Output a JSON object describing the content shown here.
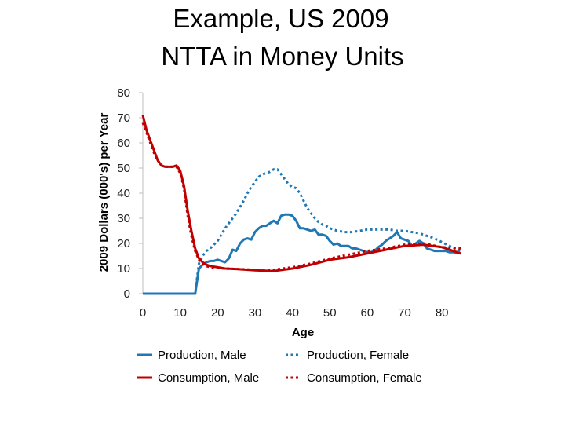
{
  "title_line1": "Example, US 2009",
  "title_line2": "NTTA in Money Units",
  "chart_data": {
    "type": "line",
    "title": "Example, US 2009 NTTA in Money Units",
    "xlabel": "Age",
    "ylabel": "2009 Dollars (000's) per Year",
    "xlim": [
      0,
      85
    ],
    "ylim": [
      0,
      80
    ],
    "xticks": [
      0,
      10,
      20,
      30,
      40,
      50,
      60,
      70,
      80
    ],
    "yticks": [
      0,
      10,
      20,
      30,
      40,
      50,
      60,
      70,
      80
    ],
    "grid": false,
    "legend_position": "bottom",
    "colors": {
      "male_production": "#1f77b4",
      "female_production": "#1f77b4",
      "male_consumption": "#c00000",
      "female_consumption": "#c00000"
    },
    "series": [
      {
        "name": "Production, Male",
        "style": "solid",
        "color": "#1f77b4",
        "x": [
          0,
          5,
          10,
          14,
          15,
          16,
          17,
          18,
          19,
          20,
          21,
          22,
          23,
          24,
          25,
          26,
          27,
          28,
          29,
          30,
          31,
          32,
          33,
          34,
          35,
          36,
          37,
          38,
          39,
          40,
          41,
          42,
          43,
          44,
          45,
          46,
          47,
          48,
          49,
          50,
          51,
          52,
          53,
          54,
          55,
          56,
          57,
          58,
          59,
          60,
          61,
          62,
          63,
          64,
          65,
          66,
          67,
          68,
          69,
          70,
          71,
          72,
          73,
          74,
          75,
          76,
          77,
          78,
          79,
          80,
          81,
          82,
          83,
          84,
          85
        ],
        "y": [
          0,
          0,
          0,
          0,
          10,
          11.5,
          12.5,
          13,
          13,
          13.5,
          13,
          12.5,
          14,
          17.5,
          17,
          20,
          21.5,
          22,
          21.5,
          24.5,
          26,
          27,
          27,
          28,
          29,
          28,
          31,
          31.5,
          31.5,
          31,
          29,
          26,
          26,
          25.5,
          25,
          25.5,
          23.5,
          23.5,
          23,
          21,
          19.5,
          20,
          19,
          19,
          19,
          18,
          18,
          17.5,
          17,
          16.5,
          16.5,
          17,
          18.5,
          19.5,
          21,
          22,
          23,
          24.5,
          22,
          21.5,
          21,
          19,
          20,
          21,
          20,
          18,
          17.5,
          17,
          17,
          17,
          17,
          16.5,
          16.5,
          16.2,
          16
        ]
      },
      {
        "name": "Production, Female",
        "style": "dotted",
        "color": "#1f77b4",
        "x": [
          0,
          5,
          10,
          14,
          15,
          16,
          17,
          18,
          19,
          20,
          21,
          22,
          23,
          24,
          25,
          26,
          27,
          28,
          29,
          30,
          31,
          32,
          33,
          34,
          35,
          36,
          37,
          38,
          39,
          40,
          41,
          42,
          43,
          44,
          45,
          46,
          47,
          48,
          49,
          50,
          52,
          54,
          56,
          58,
          60,
          62,
          64,
          66,
          68,
          70,
          72,
          74,
          76,
          78,
          80,
          82,
          84,
          85
        ],
        "y": [
          0,
          0,
          0,
          0,
          12,
          15,
          17,
          18,
          19.5,
          21,
          23.5,
          26,
          28,
          30,
          32,
          34.5,
          37,
          40,
          42.5,
          44.5,
          46.5,
          47.5,
          48,
          48.5,
          49.5,
          49.5,
          47.5,
          45.5,
          43.5,
          42.5,
          42,
          40,
          37,
          34,
          32,
          30,
          28.5,
          27.5,
          27,
          26,
          25,
          24.5,
          24.5,
          25,
          25.5,
          25.5,
          25.5,
          25.5,
          25,
          25,
          24.5,
          24,
          23,
          22,
          20.5,
          19,
          17.5,
          17
        ]
      },
      {
        "name": "Consumption, Male",
        "style": "solid",
        "color": "#c00000",
        "x": [
          0,
          1,
          2,
          3,
          4,
          5,
          6,
          7,
          8,
          9,
          10,
          11,
          12,
          13,
          14,
          15,
          16,
          17,
          18,
          20,
          22,
          25,
          30,
          35,
          40,
          45,
          50,
          55,
          60,
          65,
          70,
          75,
          80,
          85
        ],
        "y": [
          71,
          65,
          61,
          57,
          53,
          51,
          50.5,
          50.5,
          50.5,
          51,
          49,
          43,
          33,
          25,
          18,
          14,
          12.5,
          11.5,
          11,
          10.5,
          10,
          9.8,
          9.3,
          9,
          10,
          11.5,
          13.5,
          14.5,
          16,
          17.5,
          19,
          19.5,
          18.5,
          16
        ]
      },
      {
        "name": "Consumption, Female",
        "style": "dotted",
        "color": "#c00000",
        "x": [
          0,
          1,
          2,
          3,
          4,
          5,
          6,
          7,
          8,
          9,
          10,
          11,
          12,
          13,
          14,
          15,
          16,
          17,
          18,
          20,
          22,
          25,
          30,
          35,
          40,
          45,
          50,
          55,
          60,
          65,
          70,
          75,
          80,
          85
        ],
        "y": [
          68,
          64,
          60,
          56,
          53,
          51,
          50.5,
          50.5,
          50.5,
          50.5,
          48,
          42,
          31,
          23,
          17,
          13.5,
          12,
          11,
          10.5,
          10.2,
          10,
          9.8,
          9.5,
          9.5,
          10.5,
          12,
          14,
          15.5,
          17,
          18,
          19.5,
          20,
          18.5,
          18
        ]
      }
    ]
  }
}
